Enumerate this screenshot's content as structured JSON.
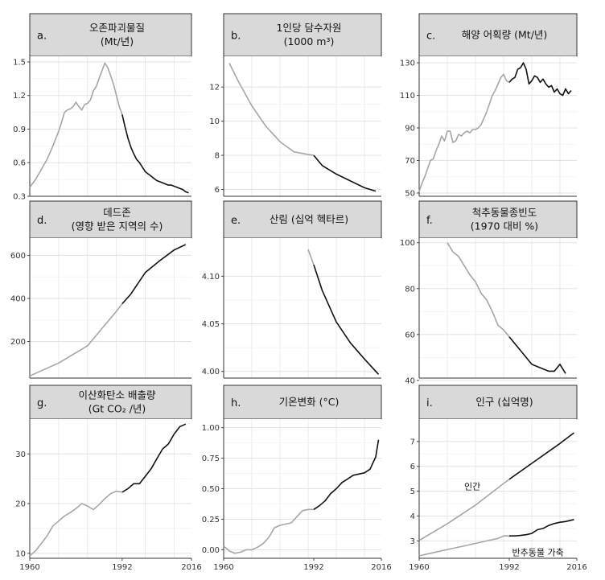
{
  "chart_data": [
    {
      "type": "line",
      "letter": "a.",
      "title": [
        "오존파괴물질",
        "(Mt/년)"
      ],
      "xlim": [
        1960,
        2016
      ],
      "ylim": [
        0.3,
        1.55
      ],
      "yticks": [
        0.3,
        0.6,
        0.9,
        1.2,
        1.5
      ],
      "ytick_labels": [
        "0.3",
        "0.6",
        "0.9",
        "1.2",
        "1.5"
      ],
      "xticks": [],
      "xtick_labels": [],
      "series": [
        {
          "x": [
            1960,
            1962,
            1964,
            1966,
            1968,
            1970,
            1971,
            1972,
            1973,
            1974,
            1975,
            1976,
            1977,
            1978,
            1979,
            1980,
            1981,
            1982,
            1983,
            1984,
            1985,
            1986,
            1987,
            1988,
            1989,
            1990,
            1991,
            1992,
            1993,
            1994,
            1995,
            1996,
            1997,
            1998,
            1999,
            2000,
            2001,
            2002,
            2003,
            2004,
            2005,
            2006,
            2007,
            2008,
            2009,
            2010,
            2011,
            2012,
            2013,
            2014,
            2015
          ],
          "y": [
            0.38,
            0.45,
            0.54,
            0.63,
            0.75,
            0.88,
            0.96,
            1.05,
            1.07,
            1.08,
            1.1,
            1.14,
            1.1,
            1.07,
            1.12,
            1.13,
            1.16,
            1.24,
            1.28,
            1.35,
            1.42,
            1.49,
            1.45,
            1.38,
            1.3,
            1.2,
            1.1,
            1.03,
            0.92,
            0.82,
            0.74,
            0.68,
            0.63,
            0.6,
            0.56,
            0.52,
            0.5,
            0.48,
            0.46,
            0.44,
            0.43,
            0.42,
            0.41,
            0.4,
            0.4,
            0.39,
            0.38,
            0.37,
            0.36,
            0.34,
            0.33
          ],
          "split_x": 1992
        }
      ]
    },
    {
      "type": "line",
      "letter": "b.",
      "title": [
        "1인당 담수자원",
        "(1000 m³)"
      ],
      "xlim": [
        1960,
        2016
      ],
      "ylim": [
        5.6,
        13.8
      ],
      "yticks": [
        6,
        8,
        10,
        12
      ],
      "ytick_labels": [
        "6",
        "8",
        "10",
        "12"
      ],
      "xticks": [],
      "xtick_labels": [],
      "series": [
        {
          "x": [
            1962,
            1965,
            1970,
            1975,
            1980,
            1985,
            1990,
            1992,
            1995,
            2000,
            2005,
            2010,
            2014
          ],
          "y": [
            13.4,
            12.4,
            10.9,
            9.7,
            8.8,
            8.2,
            8.05,
            8.0,
            7.4,
            6.9,
            6.5,
            6.1,
            5.9
          ],
          "split_x": 1992
        }
      ]
    },
    {
      "type": "line",
      "letter": "c.",
      "title": [
        "해양 어획량 (Mt/년)"
      ],
      "xlim": [
        1960,
        2016
      ],
      "ylim": [
        48,
        134
      ],
      "yticks": [
        50,
        70,
        90,
        110,
        130
      ],
      "ytick_labels": [
        "50",
        "70",
        "90",
        "110",
        "130"
      ],
      "xticks": [],
      "xtick_labels": [],
      "series": [
        {
          "x": [
            1960,
            1961,
            1962,
            1963,
            1964,
            1965,
            1966,
            1967,
            1968,
            1969,
            1970,
            1971,
            1972,
            1973,
            1974,
            1975,
            1976,
            1977,
            1978,
            1979,
            1980,
            1981,
            1982,
            1983,
            1984,
            1985,
            1986,
            1987,
            1988,
            1989,
            1990,
            1991,
            1992,
            1993,
            1994,
            1995,
            1996,
            1997,
            1998,
            1999,
            2000,
            2001,
            2002,
            2003,
            2004,
            2005,
            2006,
            2007,
            2008,
            2009,
            2010,
            2011,
            2012,
            2013,
            2014
          ],
          "y": [
            51,
            56,
            60,
            65,
            70,
            71,
            76,
            80,
            85,
            82,
            88,
            88,
            81,
            82,
            86,
            85,
            87,
            88,
            87,
            89,
            89,
            90,
            92,
            96,
            100,
            105,
            110,
            113,
            117,
            121,
            123,
            119,
            118,
            120,
            121,
            126,
            127,
            130,
            126,
            117,
            119,
            122,
            121,
            118,
            120,
            117,
            115,
            116,
            112,
            114,
            111,
            110,
            114,
            111,
            113
          ],
          "split_x": 1992
        }
      ]
    },
    {
      "type": "line",
      "letter": "d.",
      "title": [
        "데드존",
        "(영향 받은 지역의 수)"
      ],
      "xlim": [
        1960,
        2016
      ],
      "ylim": [
        30,
        680
      ],
      "yticks": [
        200,
        400,
        600
      ],
      "ytick_labels": [
        "200",
        "400",
        "600"
      ],
      "xticks": [],
      "xtick_labels": [],
      "series": [
        {
          "x": [
            1960,
            1970,
            1980,
            1985,
            1990,
            1992,
            1995,
            2000,
            2005,
            2010,
            2014
          ],
          "y": [
            40,
            100,
            180,
            260,
            340,
            375,
            420,
            520,
            575,
            625,
            650
          ],
          "split_x": 1992
        }
      ]
    },
    {
      "type": "line",
      "letter": "e.",
      "title": [
        "산림 (십억 헥타르)"
      ],
      "xlim": [
        1960,
        2016
      ],
      "ylim": [
        3.993,
        4.14
      ],
      "yticks": [
        4.0,
        4.05,
        4.1
      ],
      "ytick_labels": [
        "4.00",
        "4.05",
        "4.10"
      ],
      "xticks": [],
      "xtick_labels": [],
      "series": [
        {
          "x": [
            1990,
            1992,
            1995,
            2000,
            2005,
            2010,
            2015
          ],
          "y": [
            4.128,
            4.112,
            4.085,
            4.052,
            4.03,
            4.013,
            3.997
          ],
          "split_x": 1992
        }
      ]
    },
    {
      "type": "line",
      "letter": "f.",
      "title": [
        "척추동물종빈도",
        "(1970 대비 %)"
      ],
      "xlim": [
        1960,
        2016
      ],
      "ylim": [
        41,
        102
      ],
      "yticks": [
        40,
        60,
        80,
        100
      ],
      "ytick_labels": [
        "40",
        "60",
        "80",
        "100"
      ],
      "xticks": [],
      "xtick_labels": [],
      "series": [
        {
          "x": [
            1970,
            1972,
            1974,
            1976,
            1978,
            1980,
            1982,
            1984,
            1986,
            1988,
            1990,
            1992,
            1994,
            1996,
            1998,
            2000,
            2002,
            2004,
            2006,
            2008,
            2010,
            2012
          ],
          "y": [
            100,
            96,
            94,
            90,
            86,
            83,
            78,
            75,
            70,
            64,
            62,
            59,
            56,
            53,
            50,
            47,
            46,
            45,
            44,
            44,
            47,
            43
          ],
          "split_x": 1992
        }
      ]
    },
    {
      "type": "line",
      "letter": "g.",
      "title": [
        "이산화탄소 배출량",
        "(Gt CO₂ /년)"
      ],
      "xlim": [
        1960,
        2016
      ],
      "ylim": [
        9,
        37
      ],
      "yticks": [
        10,
        20,
        30
      ],
      "ytick_labels": [
        "10",
        "20",
        "30"
      ],
      "xticks": [
        1960,
        1992,
        2016
      ],
      "xtick_labels": [
        "1960",
        "1992",
        "2016"
      ],
      "series": [
        {
          "x": [
            1960,
            1962,
            1964,
            1966,
            1968,
            1970,
            1972,
            1974,
            1976,
            1978,
            1980,
            1982,
            1984,
            1986,
            1988,
            1990,
            1992,
            1994,
            1996,
            1998,
            2000,
            2002,
            2004,
            2006,
            2008,
            2010,
            2012,
            2014
          ],
          "y": [
            9.5,
            10.5,
            12,
            13.5,
            15.5,
            16.5,
            17.5,
            18.2,
            19,
            20,
            19.5,
            18.8,
            19.8,
            21,
            22,
            22.5,
            22.3,
            23,
            24,
            24,
            25.5,
            27,
            29,
            31,
            32,
            34,
            35.5,
            36
          ],
          "split_x": 1992
        }
      ]
    },
    {
      "type": "line",
      "letter": "h.",
      "title": [
        "기온변화 (°C)"
      ],
      "xlim": [
        1960,
        2016
      ],
      "ylim": [
        -0.07,
        1.07
      ],
      "yticks": [
        0,
        0.25,
        0.5,
        0.75,
        1.0
      ],
      "ytick_labels": [
        "0.00",
        "0.25",
        "0.50",
        "0.75",
        "1.00"
      ],
      "xticks": [
        1960,
        1992,
        2016
      ],
      "xtick_labels": [
        "1960",
        "1992",
        "2016"
      ],
      "series": [
        {
          "x": [
            1960,
            1962,
            1964,
            1966,
            1968,
            1970,
            1972,
            1974,
            1976,
            1978,
            1980,
            1982,
            1984,
            1986,
            1988,
            1990,
            1992,
            1994,
            1996,
            1998,
            2000,
            2002,
            2004,
            2006,
            2008,
            2010,
            2012,
            2014,
            2015
          ],
          "y": [
            0.03,
            -0.01,
            -0.03,
            -0.02,
            0.0,
            0.0,
            0.02,
            0.05,
            0.1,
            0.18,
            0.2,
            0.21,
            0.22,
            0.27,
            0.32,
            0.33,
            0.33,
            0.36,
            0.4,
            0.46,
            0.5,
            0.55,
            0.58,
            0.61,
            0.62,
            0.63,
            0.66,
            0.76,
            0.9
          ],
          "split_x": 1992
        }
      ]
    },
    {
      "type": "line",
      "letter": "i.",
      "title": [
        "인구 (십억명)"
      ],
      "xlim": [
        1960,
        2016
      ],
      "ylim": [
        2.3,
        7.9
      ],
      "yticks": [
        3,
        4,
        5,
        6,
        7
      ],
      "ytick_labels": [
        "3",
        "4",
        "5",
        "6",
        "7"
      ],
      "xticks": [
        1960,
        1992,
        2016
      ],
      "xtick_labels": [
        "1960",
        "1992",
        "2016"
      ],
      "annotations": [
        "인간",
        "반추동물 가축"
      ],
      "series": [
        {
          "x": [
            1960,
            1970,
            1980,
            1990,
            1992,
            2000,
            2010,
            2015
          ],
          "y": [
            3.02,
            3.69,
            4.44,
            5.31,
            5.48,
            6.12,
            6.92,
            7.35
          ],
          "split_x": 1992
        },
        {
          "x": [
            1960,
            1964,
            1968,
            1972,
            1976,
            1980,
            1984,
            1988,
            1990,
            1992,
            1994,
            1996,
            1998,
            2000,
            2002,
            2004,
            2006,
            2008,
            2010,
            2012,
            2014,
            2015
          ],
          "y": [
            2.4,
            2.5,
            2.6,
            2.7,
            2.8,
            2.9,
            3.0,
            3.1,
            3.2,
            3.2,
            3.2,
            3.22,
            3.25,
            3.3,
            3.45,
            3.5,
            3.62,
            3.7,
            3.75,
            3.78,
            3.83,
            3.86
          ],
          "split_x": 1992
        }
      ]
    }
  ]
}
